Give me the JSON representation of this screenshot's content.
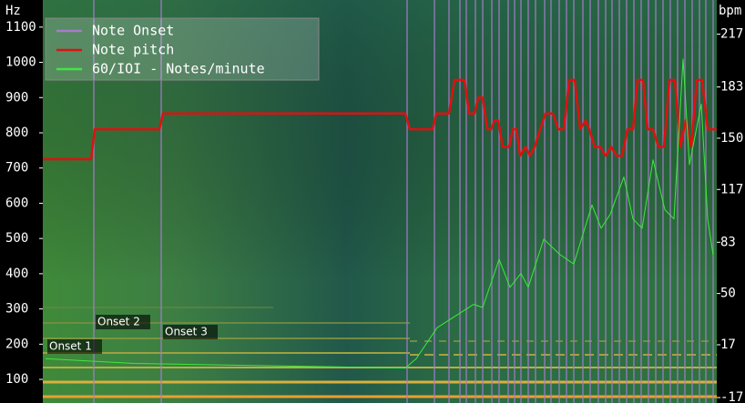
{
  "chart_data": {
    "type": "line",
    "y_label": "Hz",
    "y2_label": "bpm",
    "xlim": [
      0,
      740
    ],
    "ylim": [
      33,
      1177
    ],
    "yticks": [
      100,
      200,
      300,
      400,
      500,
      600,
      700,
      800,
      900,
      1000,
      1100
    ],
    "y2lim": [
      -20.5,
      239
    ],
    "y2ticks": [
      217,
      183,
      150,
      117,
      83,
      50,
      17,
      -17
    ],
    "legend": "upper left",
    "annotations": [
      "Onset 1",
      "Onset 2",
      "Onset 3"
    ],
    "series": [
      {
        "name": "Note Onset",
        "color": "#a57ccc",
        "kind": "vline",
        "x": [
          56,
          130,
          400,
          430,
          446,
          458,
          465,
          475,
          483,
          493,
          501,
          511,
          518,
          525,
          533,
          541,
          551,
          558,
          567,
          575,
          583,
          593,
          601,
          610,
          618,
          625,
          633,
          641,
          649,
          657,
          665,
          673,
          681,
          689,
          697,
          705,
          713,
          721,
          728,
          736
        ]
      },
      {
        "name": "Note pitch",
        "color": "#e01010",
        "x": [
          0,
          53,
          57,
          128,
          132,
          398,
          403,
          428,
          432,
          446,
          452,
          463,
          468,
          474,
          478,
          483,
          488,
          492,
          496,
          500,
          505,
          512,
          516,
          520,
          524,
          530,
          535,
          540,
          546,
          552,
          560,
          566,
          572,
          578,
          584,
          590,
          596,
          600,
          606,
          612,
          618,
          624,
          630,
          636,
          642,
          648,
          653,
          659,
          664,
          670,
          676,
          682,
          688,
          694,
          700,
          706,
          712,
          718,
          724,
          730,
          740
        ],
        "values": [
          725,
          725,
          810,
          810,
          855,
          855,
          810,
          810,
          855,
          855,
          950,
          950,
          855,
          855,
          900,
          900,
          810,
          810,
          835,
          835,
          760,
          760,
          810,
          810,
          735,
          760,
          735,
          760,
          810,
          855,
          855,
          810,
          810,
          950,
          950,
          810,
          835,
          810,
          760,
          760,
          735,
          760,
          735,
          735,
          810,
          810,
          950,
          950,
          810,
          810,
          760,
          760,
          950,
          950,
          760,
          835,
          760,
          950,
          950,
          810,
          810
        ]
      },
      {
        "name": "60/IOI - Notes/minute",
        "color": "#3ee83e",
        "axis": "y2",
        "x": [
          3,
          100,
          200,
          300,
          398,
          410,
          433,
          473,
          483,
          501,
          513,
          525,
          533,
          550,
          568,
          583,
          603,
          613,
          623,
          638,
          648,
          658,
          670,
          683,
          693,
          703,
          710,
          723,
          730,
          736
        ],
        "values": [
          8,
          5,
          4,
          3,
          2,
          8,
          28,
          43,
          41,
          72,
          54,
          63,
          54,
          85,
          75,
          69,
          107,
          92,
          101,
          125,
          98,
          92,
          136,
          104,
          98,
          201,
          133,
          172,
          98,
          75
        ]
      }
    ]
  }
}
